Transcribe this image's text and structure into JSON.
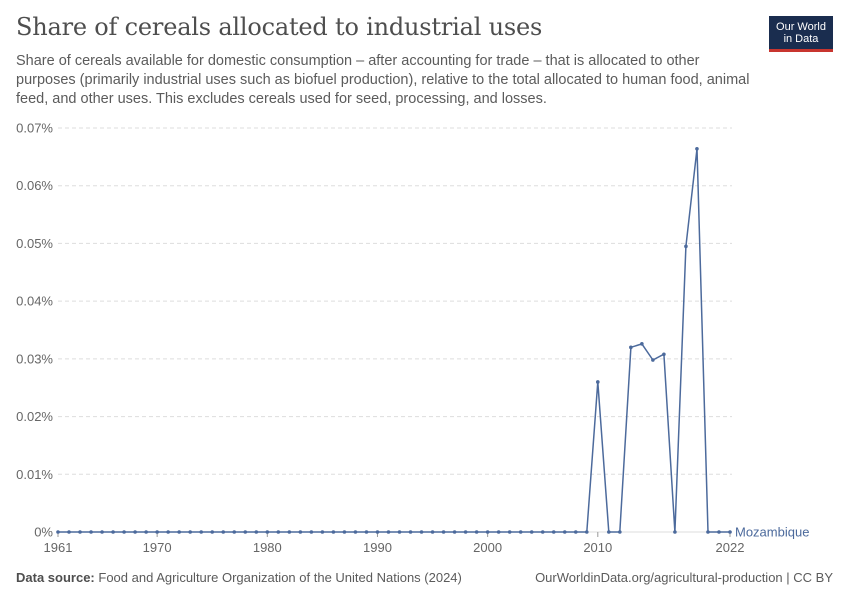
{
  "header": {
    "title": "Share of cereals allocated to industrial uses",
    "subtitle": "Share of cereals available for domestic consumption – after accounting for trade – that is allocated to other purposes (primarily industrial uses such as biofuel production), relative to the total allocated to human food, animal feed, and other uses. This excludes cereals used for seed, processing, and losses.",
    "logo_line1": "Our World",
    "logo_line2": "in Data"
  },
  "footer": {
    "source_label": "Data source:",
    "source_text": "Food and Agriculture Organization of the United Nations (2024)",
    "right": "OurWorldinData.org/agricultural-production | CC BY"
  },
  "colors": {
    "series": "#4c6a9c",
    "grid": "#dddddd",
    "axis_text": "#666666",
    "logo_bg": "#1a2d4f",
    "logo_accent": "#c8352f"
  },
  "chart_data": {
    "type": "line",
    "title": "Share of cereals allocated to industrial uses",
    "xlim": [
      1961,
      2022
    ],
    "ylim": [
      0,
      0.07
    ],
    "y_ticks": [
      "0%",
      "0.01%",
      "0.02%",
      "0.03%",
      "0.04%",
      "0.05%",
      "0.06%",
      "0.07%"
    ],
    "y_tick_values": [
      0,
      0.01,
      0.02,
      0.03,
      0.04,
      0.05,
      0.06,
      0.07
    ],
    "x_ticks": [
      "1961",
      "1970",
      "1980",
      "1990",
      "2000",
      "2010",
      "2022"
    ],
    "x_tick_values": [
      1961,
      1970,
      1980,
      1990,
      2000,
      2010,
      2022
    ],
    "grid": "horizontal dashed",
    "series": [
      {
        "name": "Mozambique",
        "x": [
          1961,
          1962,
          1963,
          1964,
          1965,
          1966,
          1967,
          1968,
          1969,
          1970,
          1971,
          1972,
          1973,
          1974,
          1975,
          1976,
          1977,
          1978,
          1979,
          1980,
          1981,
          1982,
          1983,
          1984,
          1985,
          1986,
          1987,
          1988,
          1989,
          1990,
          1991,
          1992,
          1993,
          1994,
          1995,
          1996,
          1997,
          1998,
          1999,
          2000,
          2001,
          2002,
          2003,
          2004,
          2005,
          2006,
          2007,
          2008,
          2009,
          2010,
          2011,
          2012,
          2013,
          2014,
          2015,
          2016,
          2017,
          2018,
          2019,
          2020,
          2021,
          2022
        ],
        "y": [
          0,
          0,
          0,
          0,
          0,
          0,
          0,
          0,
          0,
          0,
          0,
          0,
          0,
          0,
          0,
          0,
          0,
          0,
          0,
          0,
          0,
          0,
          0,
          0,
          0,
          0,
          0,
          0,
          0,
          0,
          0,
          0,
          0,
          0,
          0,
          0,
          0,
          0,
          0,
          0,
          0,
          0,
          0,
          0,
          0,
          0,
          0,
          0,
          0,
          0.026,
          0,
          0,
          0.032,
          0.0326,
          0.0298,
          0.0308,
          0,
          0.0495,
          0.0664,
          0,
          0,
          0
        ]
      }
    ]
  }
}
